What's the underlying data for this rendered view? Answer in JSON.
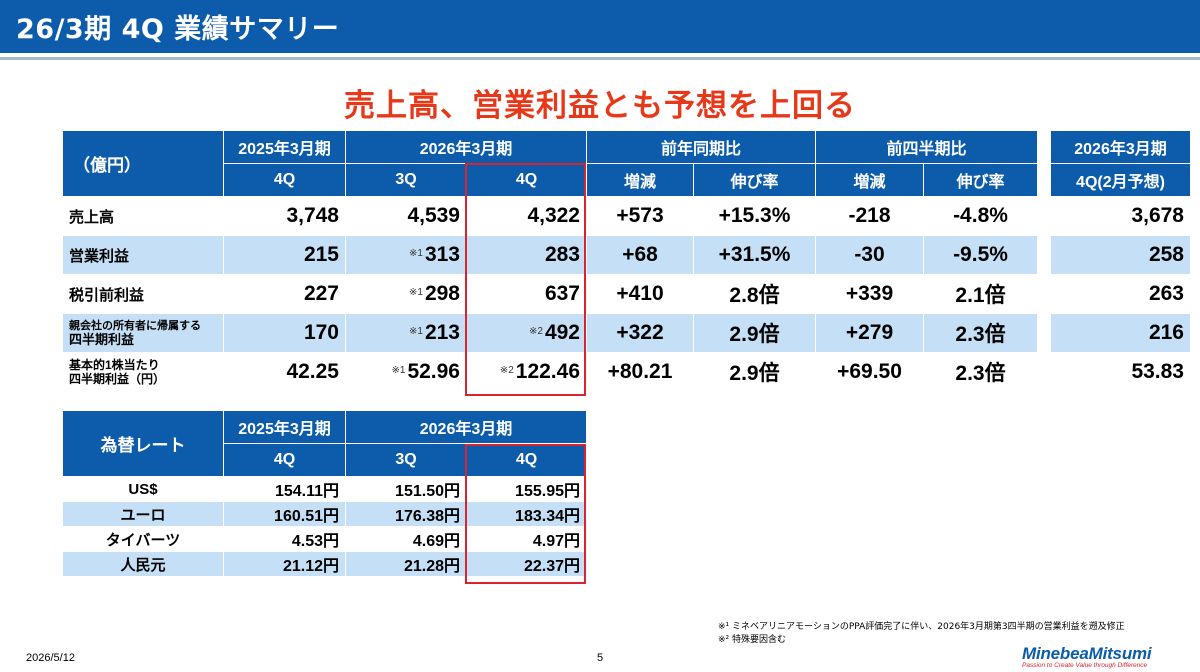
{
  "title": "26/3期 4Q 業績サマリー",
  "headline": "売上高、営業利益とも予想を上回る",
  "main_table": {
    "unit_label": "（億円）",
    "group_headers": [
      "2025年3月期",
      "2026年3月期",
      "前年同期比",
      "前四半期比",
      "2026年3月期"
    ],
    "sub_headers": [
      "4Q",
      "3Q",
      "4Q",
      "増減",
      "伸び率",
      "増減",
      "伸び率",
      "4Q(2月予想)"
    ],
    "rows": [
      {
        "label": "売上高",
        "label2": "",
        "fy25_4q": "3,748",
        "fy26_3q_note": "",
        "fy26_3q": "4,539",
        "fy26_4q_note": "",
        "fy26_4q": "4,322",
        "yoy_diff": "+573",
        "yoy_rate": "+15.3%",
        "qoq_diff": "-218",
        "qoq_rate": "-4.8%",
        "forecast": "3,678"
      },
      {
        "label": "営業利益",
        "label2": "",
        "fy25_4q": "215",
        "fy26_3q_note": "※1",
        "fy26_3q": "313",
        "fy26_4q_note": "",
        "fy26_4q": "283",
        "yoy_diff": "+68",
        "yoy_rate": "+31.5%",
        "qoq_diff": "-30",
        "qoq_rate": "-9.5%",
        "forecast": "258"
      },
      {
        "label": "税引前利益",
        "label2": "",
        "fy25_4q": "227",
        "fy26_3q_note": "※1",
        "fy26_3q": "298",
        "fy26_4q_note": "",
        "fy26_4q": "637",
        "yoy_diff": "+410",
        "yoy_rate": "2.8倍",
        "qoq_diff": "+339",
        "qoq_rate": "2.1倍",
        "forecast": "263"
      },
      {
        "label": "親会社の所有者に帰属する",
        "label2": "四半期利益",
        "fy25_4q": "170",
        "fy26_3q_note": "※1",
        "fy26_3q": "213",
        "fy26_4q_note": "※2",
        "fy26_4q": "492",
        "yoy_diff": "+322",
        "yoy_rate": "2.9倍",
        "qoq_diff": "+279",
        "qoq_rate": "2.3倍",
        "forecast": "216"
      },
      {
        "label": "基本的1株当たり",
        "label2": "四半期利益（円）",
        "fy25_4q": "42.25",
        "fy26_3q_note": "※1",
        "fy26_3q": "52.96",
        "fy26_4q_note": "※2",
        "fy26_4q": "122.46",
        "yoy_diff": "+80.21",
        "yoy_rate": "2.9倍",
        "qoq_diff": "+69.50",
        "qoq_rate": "2.3倍",
        "forecast": "53.83"
      }
    ]
  },
  "fx_table": {
    "label": "為替レート",
    "group_headers": [
      "2025年3月期",
      "2026年3月期"
    ],
    "sub_headers": [
      "4Q",
      "3Q",
      "4Q"
    ],
    "rows": [
      {
        "currency": "US$",
        "fy25_4q": "154.11円",
        "fy26_3q": "151.50円",
        "fy26_4q": "155.95円"
      },
      {
        "currency": "ユーロ",
        "fy25_4q": "160.51円",
        "fy26_3q": "176.38円",
        "fy26_4q": "183.34円"
      },
      {
        "currency": "タイバーツ",
        "fy25_4q": "4.53円",
        "fy26_3q": "4.69円",
        "fy26_4q": "4.97円"
      },
      {
        "currency": "人民元",
        "fy25_4q": "21.12円",
        "fy26_3q": "21.28円",
        "fy26_4q": "22.37円"
      }
    ]
  },
  "footnotes": [
    "※¹ ミネベアリニアモーションのPPA評価完了に伴い、2026年3月期第3四半期の営業利益を遡及修正",
    "※² 特殊要因含む"
  ],
  "footer": {
    "date": "2026/5/12",
    "page": "5"
  },
  "logo": {
    "name": "MinebeaMitsumi",
    "tagline": "Passion to Create Value through Difference"
  },
  "colors": {
    "header_blue": "#0d5cab",
    "row_blue": "#c5e0f6",
    "headline_red": "#e8381a",
    "highlight_red": "#d9232e"
  }
}
